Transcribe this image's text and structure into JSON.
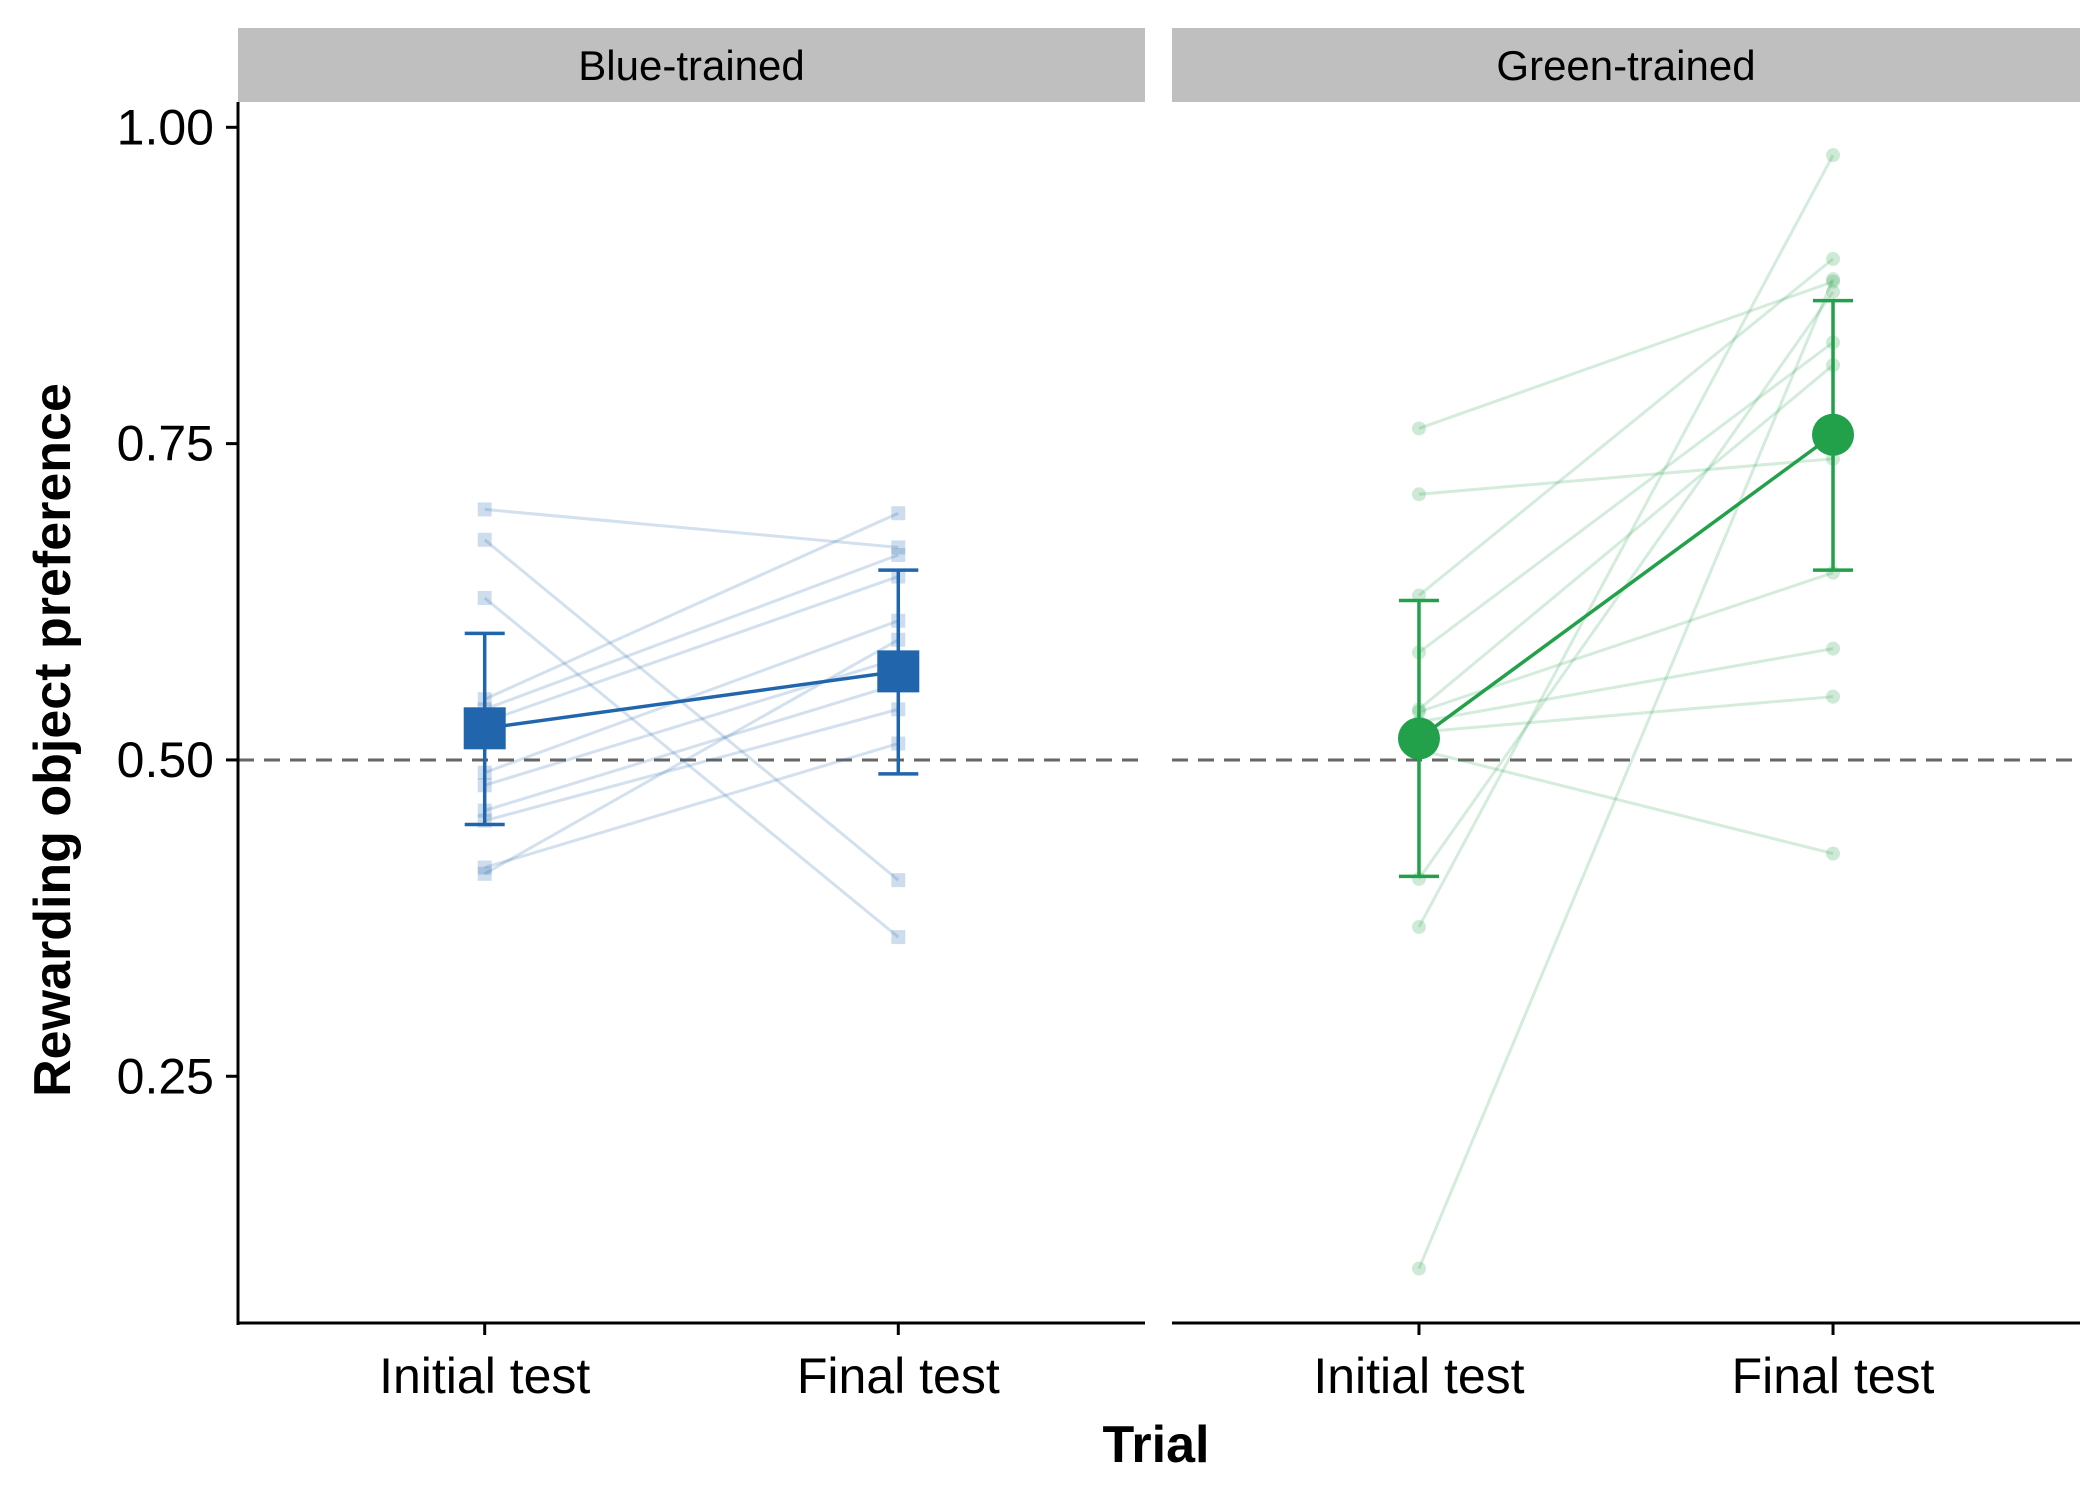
{
  "chart_data": {
    "type": "line",
    "xlabel": "Trial",
    "ylabel": "Rewarding object preference",
    "categories": [
      "Initial test",
      "Final test"
    ],
    "yticks": [
      0.25,
      0.5,
      0.75,
      1.0
    ],
    "ytick_labels": [
      "0.25",
      "0.50",
      "0.75",
      "1.00"
    ],
    "ylim": [
      0.055,
      1.02
    ],
    "reference_line": 0.5,
    "panels": [
      {
        "strip": "Blue-trained",
        "color": "#2166ac",
        "marker": "square",
        "mean": {
          "values": [
            0.525,
            0.57
          ],
          "ci_low": [
            0.449,
            0.489
          ],
          "ci_high": [
            0.6,
            0.65
          ]
        },
        "individuals": [
          [
            0.698,
            0.668
          ],
          [
            0.674,
            0.405
          ],
          [
            0.628,
            0.36
          ],
          [
            0.548,
            0.695
          ],
          [
            0.54,
            0.662
          ],
          [
            0.53,
            0.645
          ],
          [
            0.49,
            0.61
          ],
          [
            0.48,
            0.58
          ],
          [
            0.46,
            0.56
          ],
          [
            0.452,
            0.54
          ],
          [
            0.415,
            0.513
          ],
          [
            0.41,
            0.595
          ]
        ]
      },
      {
        "strip": "Green-trained",
        "color": "#22a04a",
        "marker": "circle",
        "mean": {
          "values": [
            0.517,
            0.757
          ],
          "ci_low": [
            0.408,
            0.65
          ],
          "ci_high": [
            0.626,
            0.863
          ]
        },
        "individuals": [
          [
            0.762,
            0.878
          ],
          [
            0.71,
            0.738
          ],
          [
            0.63,
            0.896
          ],
          [
            0.585,
            0.83
          ],
          [
            0.54,
            0.812
          ],
          [
            0.538,
            0.648
          ],
          [
            0.53,
            0.588
          ],
          [
            0.522,
            0.55
          ],
          [
            0.508,
            0.426
          ],
          [
            0.406,
            0.87
          ],
          [
            0.368,
            0.978
          ],
          [
            0.098,
            0.88
          ]
        ]
      }
    ]
  }
}
